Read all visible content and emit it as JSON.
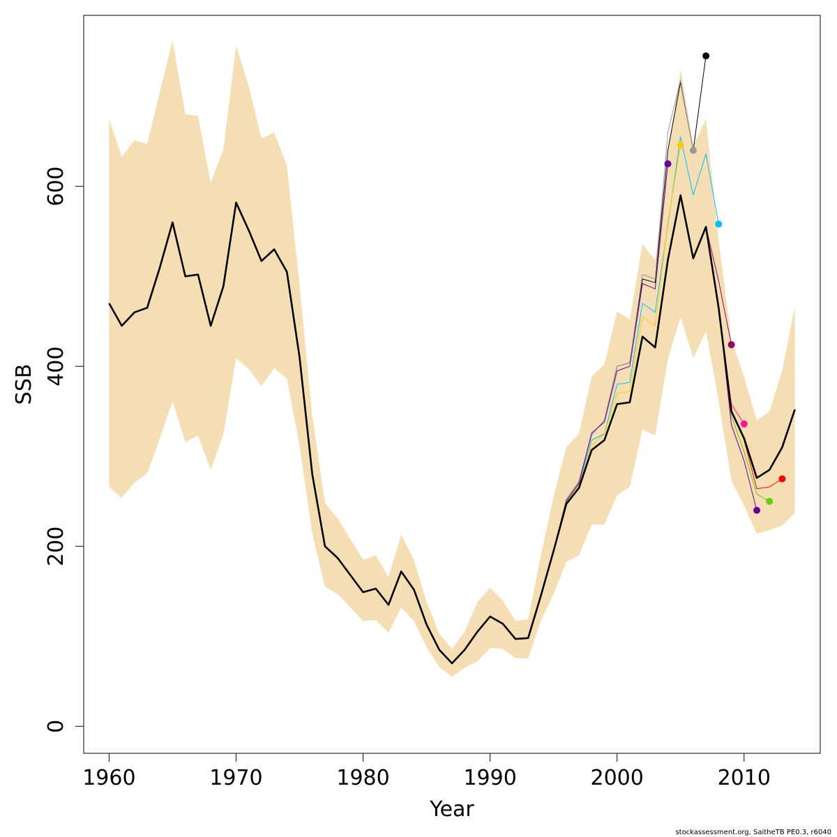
{
  "chart_data": {
    "type": "line",
    "title": "",
    "xlabel": "Year",
    "ylabel": "SSB",
    "xlim": [
      1958,
      2016
    ],
    "ylim": [
      -30,
      790
    ],
    "x_ticks": [
      1960,
      1970,
      1980,
      1990,
      2000,
      2010
    ],
    "y_ticks": [
      0,
      200,
      400,
      600
    ],
    "grid": false,
    "legend": "none",
    "colors": {
      "band": "#f5deb3",
      "main": "#000000",
      "peels": [
        "#ff0000",
        "#66cc00",
        "#660099",
        "#ff1493",
        "#990066",
        "#00bfff",
        "#000000",
        "#999999",
        "#ffcc00",
        "#660099"
      ]
    },
    "confidence_band": {
      "x": [
        1960,
        1961,
        1962,
        1963,
        1964,
        1965,
        1966,
        1967,
        1968,
        1969,
        1970,
        1971,
        1972,
        1973,
        1974,
        1975,
        1976,
        1977,
        1978,
        1979,
        1980,
        1981,
        1982,
        1983,
        1984,
        1985,
        1986,
        1987,
        1988,
        1989,
        1990,
        1991,
        1992,
        1993,
        1994,
        1995,
        1996,
        1997,
        1998,
        1999,
        2000,
        2001,
        2002,
        2003,
        2004,
        2005,
        2006,
        2007,
        2008,
        2009,
        2010,
        2011,
        2012,
        2013,
        2014
      ],
      "upper": [
        675,
        633,
        651,
        647,
        705,
        762,
        680,
        678,
        604,
        641,
        756,
        711,
        653,
        660,
        623,
        490,
        345,
        248,
        231,
        208,
        185,
        190,
        166,
        213,
        185,
        138,
        103,
        86,
        105,
        138,
        154,
        140,
        117,
        119,
        190,
        255,
        310,
        325,
        389,
        402,
        461,
        452,
        536,
        518,
        635,
        730,
        645,
        675,
        540,
        430,
        388,
        340,
        350,
        395,
        467
      ],
      "lower": [
        266,
        254,
        271,
        281,
        320,
        361,
        316,
        323,
        285,
        325,
        409,
        397,
        378,
        398,
        386,
        312,
        214,
        155,
        147,
        132,
        117,
        118,
        104,
        132,
        117,
        88,
        66,
        55,
        65,
        72,
        87,
        86,
        76,
        75,
        117,
        147,
        183,
        190,
        224,
        224,
        257,
        266,
        330,
        323,
        408,
        455,
        409,
        439,
        362,
        273,
        245,
        214,
        218,
        223,
        237
      ]
    },
    "series": [
      {
        "values": [
          470,
          445,
          460,
          465,
          510,
          560,
          500,
          502,
          445,
          489,
          582,
          551,
          517,
          530,
          505,
          410,
          280,
          200,
          187,
          168,
          149,
          153,
          135,
          172,
          152,
          113,
          85,
          70,
          85,
          105,
          122,
          114,
          97,
          98,
          145,
          195,
          247,
          265,
          307,
          318,
          358,
          360,
          433,
          421,
          518,
          590,
          520,
          555,
          465,
          350,
          320,
          276,
          285,
          310,
          352
        ]
      },
      {
        "end_year": 2013,
        "values": [
          470,
          445,
          460,
          465,
          510,
          560,
          500,
          502,
          445,
          489,
          582,
          551,
          517,
          530,
          505,
          410,
          280,
          200,
          187,
          168,
          149,
          153,
          135,
          172,
          152,
          113,
          85,
          70,
          85,
          105,
          122,
          114,
          97,
          98,
          145,
          195,
          247,
          265,
          307,
          318,
          358,
          360,
          433,
          421,
          518,
          590,
          520,
          555,
          465,
          350,
          318,
          264,
          266,
          275
        ]
      },
      {
        "end_year": 2012,
        "values": [
          470,
          445,
          460,
          465,
          510,
          560,
          500,
          502,
          445,
          489,
          582,
          551,
          517,
          530,
          505,
          410,
          280,
          200,
          187,
          168,
          149,
          153,
          135,
          172,
          152,
          113,
          85,
          70,
          85,
          105,
          122,
          114,
          97,
          98,
          145,
          195,
          247,
          265,
          307,
          318,
          358,
          360,
          433,
          421,
          518,
          590,
          520,
          555,
          465,
          345,
          305,
          258,
          250
        ]
      },
      {
        "end_year": 2011,
        "values": [
          470,
          445,
          460,
          465,
          510,
          560,
          500,
          502,
          445,
          489,
          582,
          551,
          517,
          530,
          505,
          410,
          280,
          200,
          187,
          168,
          149,
          153,
          135,
          172,
          152,
          113,
          85,
          70,
          85,
          105,
          122,
          114,
          97,
          98,
          145,
          195,
          247,
          265,
          307,
          318,
          358,
          360,
          433,
          421,
          518,
          590,
          520,
          555,
          465,
          335,
          295,
          240
        ]
      },
      {
        "end_year": 2010,
        "values": [
          470,
          445,
          460,
          465,
          510,
          560,
          500,
          502,
          445,
          489,
          582,
          551,
          517,
          530,
          505,
          410,
          280,
          200,
          187,
          168,
          149,
          153,
          135,
          172,
          152,
          113,
          85,
          70,
          85,
          105,
          122,
          114,
          97,
          98,
          145,
          195,
          247,
          265,
          307,
          318,
          358,
          360,
          433,
          421,
          518,
          590,
          520,
          555,
          465,
          358,
          336
        ]
      },
      {
        "end_year": 2009,
        "values": [
          470,
          445,
          460,
          465,
          510,
          560,
          500,
          502,
          445,
          489,
          582,
          551,
          517,
          530,
          505,
          410,
          280,
          200,
          187,
          168,
          149,
          153,
          135,
          172,
          152,
          113,
          85,
          70,
          85,
          105,
          122,
          114,
          97,
          98,
          145,
          195,
          247,
          265,
          307,
          318,
          358,
          360,
          433,
          421,
          518,
          590,
          520,
          555,
          495,
          424
        ]
      },
      {
        "end_year": 2008,
        "values": [
          470,
          445,
          460,
          465,
          510,
          560,
          500,
          502,
          445,
          489,
          582,
          551,
          517,
          530,
          505,
          410,
          280,
          200,
          187,
          168,
          149,
          153,
          135,
          172,
          152,
          113,
          85,
          70,
          85,
          105,
          122,
          114,
          97,
          98,
          145,
          195,
          250,
          270,
          318,
          325,
          380,
          382,
          470,
          460,
          557,
          655,
          590,
          636,
          558
        ]
      },
      {
        "end_year": 2007,
        "values": [
          470,
          445,
          460,
          465,
          510,
          560,
          500,
          502,
          445,
          489,
          582,
          551,
          517,
          530,
          505,
          410,
          280,
          200,
          187,
          168,
          149,
          153,
          135,
          172,
          152,
          113,
          85,
          70,
          85,
          105,
          122,
          114,
          97,
          98,
          145,
          195,
          252,
          272,
          324,
          340,
          400,
          404,
          497,
          493,
          640,
          716,
          640,
          745
        ]
      },
      {
        "end_year": 2006,
        "values": [
          470,
          445,
          460,
          465,
          510,
          560,
          500,
          502,
          445,
          489,
          582,
          551,
          517,
          530,
          505,
          410,
          280,
          200,
          187,
          168,
          149,
          153,
          135,
          172,
          152,
          113,
          85,
          70,
          85,
          105,
          122,
          114,
          97,
          98,
          145,
          195,
          252,
          272,
          324,
          340,
          400,
          404,
          502,
          497,
          660,
          718,
          640
        ]
      },
      {
        "end_year": 2005,
        "values": [
          470,
          445,
          460,
          465,
          510,
          560,
          500,
          502,
          445,
          489,
          582,
          551,
          517,
          530,
          505,
          410,
          280,
          200,
          187,
          168,
          149,
          153,
          135,
          172,
          152,
          113,
          85,
          70,
          85,
          105,
          122,
          114,
          97,
          98,
          145,
          195,
          248,
          268,
          312,
          325,
          370,
          372,
          455,
          445,
          560,
          646
        ]
      },
      {
        "end_year": 2004,
        "values": [
          470,
          445,
          460,
          465,
          510,
          560,
          500,
          502,
          445,
          489,
          582,
          551,
          517,
          530,
          505,
          410,
          280,
          200,
          187,
          168,
          149,
          153,
          135,
          172,
          152,
          113,
          85,
          70,
          85,
          105,
          122,
          114,
          97,
          98,
          145,
          195,
          250,
          270,
          326,
          338,
          395,
          400,
          492,
          486,
          625
        ]
      }
    ]
  },
  "footer": "stockassessment.org, SaitheTB  PE0.3, r6040"
}
